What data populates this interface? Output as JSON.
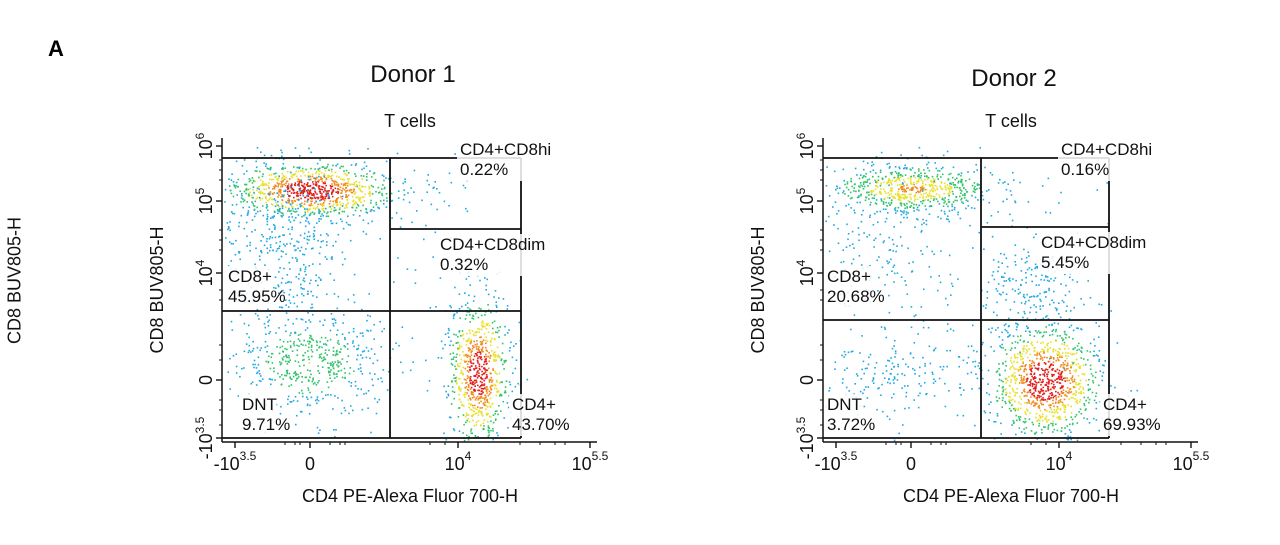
{
  "figure": {
    "panel_letter": "A",
    "side_fragment": "CD8 BUV805-H"
  },
  "chart_data": [
    {
      "type": "scatter",
      "title": "Donor 1",
      "subtitle": "T cells",
      "xlabel": "CD4 PE-Alexa Fluor 700-H",
      "ylabel": "CD8 BUV805-H",
      "x_ticks": [
        {
          "base": "-10",
          "exp": "3.5"
        },
        {
          "base": "0",
          "exp": ""
        },
        {
          "base": "10",
          "exp": "4"
        },
        {
          "base": "10",
          "exp": "5.5"
        }
      ],
      "y_ticks": [
        {
          "base": "-10",
          "exp": "3.5"
        },
        {
          "base": "0",
          "exp": ""
        },
        {
          "base": "10",
          "exp": "4"
        },
        {
          "base": "10",
          "exp": "5"
        },
        {
          "base": "10",
          "exp": "6"
        }
      ],
      "gates": [
        {
          "name": "CD4+CD8hi",
          "percent": "0.22%"
        },
        {
          "name": "CD4+CD8dim",
          "percent": "0.32%"
        },
        {
          "name": "CD8+",
          "percent": "45.95%"
        },
        {
          "name": "DNT",
          "percent": "9.71%"
        },
        {
          "name": "CD4+",
          "percent": "43.70%"
        }
      ],
      "populations": [
        {
          "gate": "CD8+",
          "percent": 45.95,
          "center": [
            -300,
            140000
          ]
        },
        {
          "gate": "DNT",
          "percent": 9.71,
          "center": [
            0,
            0
          ]
        },
        {
          "gate": "CD4+",
          "percent": 43.7,
          "center": [
            14000,
            0
          ]
        },
        {
          "gate": "CD4+CD8dim",
          "percent": 0.32,
          "center": [
            8000,
            8000
          ]
        },
        {
          "gate": "CD4+CD8hi",
          "percent": 0.22,
          "center": [
            9000,
            90000
          ]
        }
      ]
    },
    {
      "type": "scatter",
      "title": "Donor 2",
      "subtitle": "T cells",
      "xlabel": "CD4 PE-Alexa Fluor 700-H",
      "ylabel": "CD8 BUV805-H",
      "x_ticks": [
        {
          "base": "-10",
          "exp": "3.5"
        },
        {
          "base": "0",
          "exp": ""
        },
        {
          "base": "10",
          "exp": "4"
        },
        {
          "base": "10",
          "exp": "5.5"
        }
      ],
      "y_ticks": [
        {
          "base": "-10",
          "exp": "3.5"
        },
        {
          "base": "0",
          "exp": ""
        },
        {
          "base": "10",
          "exp": "4"
        },
        {
          "base": "10",
          "exp": "5"
        },
        {
          "base": "10",
          "exp": "6"
        }
      ],
      "gates": [
        {
          "name": "CD4+CD8hi",
          "percent": "0.16%"
        },
        {
          "name": "CD4+CD8dim",
          "percent": "5.45%"
        },
        {
          "name": "CD8+",
          "percent": "20.68%"
        },
        {
          "name": "DNT",
          "percent": "3.72%"
        },
        {
          "name": "CD4+",
          "percent": "69.93%"
        }
      ],
      "populations": [
        {
          "gate": "CD8+",
          "percent": 20.68,
          "center": [
            -300,
            140000
          ]
        },
        {
          "gate": "DNT",
          "percent": 3.72,
          "center": [
            0,
            0
          ]
        },
        {
          "gate": "CD4+",
          "percent": 69.93,
          "center": [
            8000,
            0
          ]
        },
        {
          "gate": "CD4+CD8dim",
          "percent": 5.45,
          "center": [
            6000,
            6000
          ]
        },
        {
          "gate": "CD4+CD8hi",
          "percent": 0.16,
          "center": [
            9000,
            90000
          ]
        }
      ]
    }
  ]
}
